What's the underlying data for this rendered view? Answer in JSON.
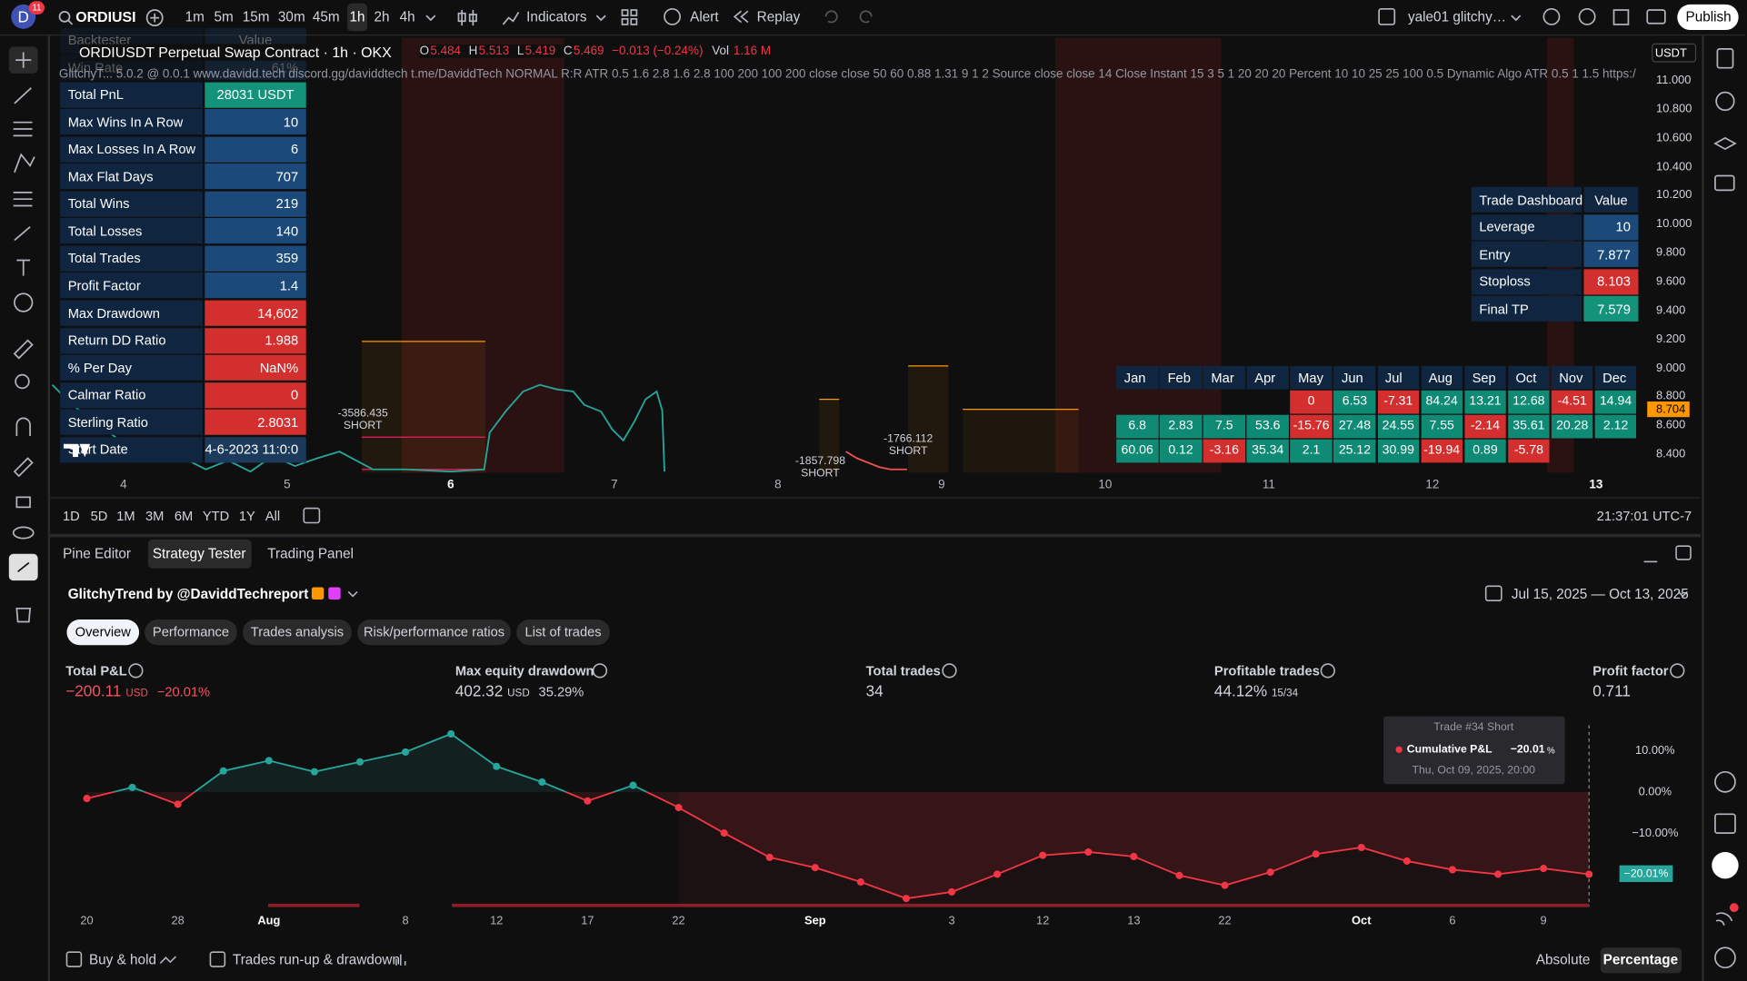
{
  "top_bar": {
    "avatar": "D",
    "badge": "11",
    "symbol": "ORDIUSI",
    "timeframes": [
      "1m",
      "5m",
      "15m",
      "30m",
      "45m",
      "1h",
      "2h",
      "4h"
    ],
    "indicators": "Indicators",
    "alert": "Alert",
    "replay": "Replay",
    "account": "yale01 glitchy…",
    "publish": "Publish"
  },
  "chart_header": {
    "title": "ORDIUSDT Perpetual Swap Contract · 1h · OKX",
    "ohlc": [
      {
        "key": "O",
        "value": "5.484"
      },
      {
        "key": "H",
        "value": "5.513"
      },
      {
        "key": "L",
        "value": "5.419"
      },
      {
        "key": "C",
        "value": "5.469"
      }
    ],
    "change": "−0.013 (−0.24%)",
    "volume_key": "Vol",
    "volume": "1.16 M",
    "indicator": "GlitchyT... 5.0.2 @ 0.0.1 www.davidd.tech discord.gg/daviddtech t.me/DaviddTech NORMAL R:R ATR 0.5 1.6 2.8 1.6 2.8 100 200 100 200 close close 50 60 0.88 1.31 9 1 2 Source close close 14 Close Instant 15 3 5 1 20 20 20 Percent 10 10 25 25 100 0.5 Dynamic Algo ATR 0.5 1 1.5 https:/"
  },
  "price_axis": {
    "currency": "USDT",
    "labels": [
      "11.000",
      "10.800",
      "10.600",
      "10.400",
      "10.200",
      "10.000",
      "9.800",
      "9.600",
      "9.400",
      "9.200",
      "9.000",
      "8.800",
      "8.600",
      "8.400"
    ],
    "last_price": "8.704"
  },
  "time_axis": [
    "4",
    "5",
    "6",
    "7",
    "8",
    "9",
    "10",
    "11",
    "12",
    "13"
  ],
  "backtester": {
    "header": [
      "Backtester",
      "Value"
    ],
    "rows": [
      [
        "Win Rate",
        "61%"
      ],
      [
        "Total PnL",
        "28031 USDT"
      ],
      [
        "Max Wins In A Row",
        "10"
      ],
      [
        "Max Losses In A Row",
        "6"
      ],
      [
        "Max Flat Days",
        "707"
      ],
      [
        "Total Wins",
        "219"
      ],
      [
        "Total Losses",
        "140"
      ],
      [
        "Total Trades",
        "359"
      ],
      [
        "Profit Factor",
        "1.4"
      ],
      [
        "Max Drawdown",
        "14,602"
      ],
      [
        "Return DD Ratio",
        "1.988"
      ],
      [
        "% Per Day",
        "NaN%"
      ],
      [
        "Calmar Ratio",
        "0"
      ],
      [
        "Sterling Ratio",
        "2.8031"
      ],
      [
        "Start Date",
        "4-6-2023 11:0:0"
      ]
    ],
    "value_colors": [
      "#1b4a7a",
      "#14937b",
      "#1b4a7a",
      "#1b4a7a",
      "#1b4a7a",
      "#1b4a7a",
      "#1b4a7a",
      "#1b4a7a",
      "#1b4a7a",
      "#d32f2f",
      "#d32f2f",
      "#d32f2f",
      "#d32f2f",
      "#d32f2f",
      "#1b3a5c"
    ]
  },
  "trade_dashboard": {
    "header": [
      "Trade Dashboard",
      "Value"
    ],
    "rows": [
      [
        "Leverage",
        "10"
      ],
      [
        "Entry",
        "7.877"
      ],
      [
        "Stoploss",
        "8.103"
      ],
      [
        "Final TP",
        "7.579"
      ]
    ],
    "value_colors": [
      "#1b4a7a",
      "#1b4a7a",
      "#d32f2f",
      "#14937b"
    ]
  },
  "monthly_returns": {
    "months": [
      "Jan",
      "Feb",
      "Mar",
      "Apr",
      "May",
      "Jun",
      "Jul",
      "Aug",
      "Sep",
      "Oct",
      "Nov",
      "Dec"
    ],
    "rows": [
      [
        null,
        null,
        null,
        null,
        0,
        6.53,
        -7.31,
        84.24,
        13.21,
        12.68,
        -4.51,
        14.94
      ],
      [
        6.8,
        2.83,
        7.5,
        53.6,
        -15.76,
        27.48,
        24.55,
        7.55,
        -2.14,
        35.61,
        20.28,
        2.12
      ],
      [
        60.06,
        0.12,
        -3.16,
        35.34,
        2.1,
        25.12,
        30.99,
        -19.94,
        0.89,
        -5.78,
        null,
        null
      ]
    ]
  },
  "trade_labels": [
    {
      "pnl": "-3586.435",
      "side": "SHORT"
    },
    {
      "pnl": "-1766.112",
      "side": "SHORT"
    },
    {
      "pnl": "-1857.798",
      "side": "SHORT"
    }
  ],
  "range_bar": {
    "ranges": [
      "1D",
      "5D",
      "1M",
      "3M",
      "6M",
      "YTD",
      "1Y",
      "All"
    ],
    "clock": "21:37:01 UTC-7"
  },
  "panel_tabs": [
    "Pine Editor",
    "Strategy Tester",
    "Trading Panel"
  ],
  "report": {
    "title": "GlitchyTrend by @DaviddTech",
    "suffix": "report",
    "date_range": "Jul 15, 2025 — Oct 13, 2025",
    "tabs": [
      "Overview",
      "Performance",
      "Trades analysis",
      "Risk/performance ratios",
      "List of trades"
    ],
    "metrics": [
      {
        "label": "Total P&L",
        "value": "−200.11",
        "unit": "USD",
        "sub": "−20.01%",
        "color": "#f7525f"
      },
      {
        "label": "Max equity drawdown",
        "value": "402.32",
        "unit": "USD",
        "sub": "35.29%",
        "color": "#d1d4dc"
      },
      {
        "label": "Total trades",
        "value": "34",
        "color": "#d1d4dc"
      },
      {
        "label": "Profitable trades",
        "value": "44.12%",
        "unit": "15/34",
        "color": "#d1d4dc"
      },
      {
        "label": "Profit factor",
        "value": "0.711",
        "color": "#d1d4dc"
      }
    ]
  },
  "equity_chart": {
    "type": "line",
    "values": [
      -1.6,
      1.1,
      -3.0,
      5.1,
      7.6,
      4.9,
      7.3,
      9.7,
      14.1,
      6.2,
      2.4,
      -2.2,
      1.6,
      -3.8,
      -10.0,
      -15.9,
      -18.4,
      -21.9,
      -25.9,
      -24.3,
      -20.0,
      -15.4,
      -14.6,
      -15.7,
      -20.3,
      -22.7,
      -19.5,
      -15.1,
      -13.5,
      -16.8,
      -18.9,
      -20.0,
      -18.6,
      -20.01
    ],
    "ylim": [
      -27.84,
      16.76
    ],
    "yticks": [
      {
        "value": 10,
        "label": "10.00%"
      },
      {
        "value": 0,
        "label": "0.00%"
      },
      {
        "value": -10,
        "label": "−10.00%"
      }
    ],
    "x_labels": [
      "20",
      "28",
      "Aug",
      "8",
      "12",
      "17",
      "22",
      "Sep",
      "3",
      "12",
      "13",
      "22",
      "Oct",
      "6",
      "9"
    ],
    "color_up": "#26a69a",
    "color_down": "#f23645",
    "tooltip": {
      "title": "Trade #34 Short",
      "label": "Cumulative P&L",
      "value": "−20.01",
      "unit": "%",
      "time": "Thu, Oct 09, 2025, 20:00"
    },
    "last_label": "−20.01%"
  },
  "footer": {
    "buy_hold": "Buy & hold",
    "runup": "Trades run-up & drawdown",
    "absolute": "Absolute",
    "percentage": "Percentage"
  }
}
